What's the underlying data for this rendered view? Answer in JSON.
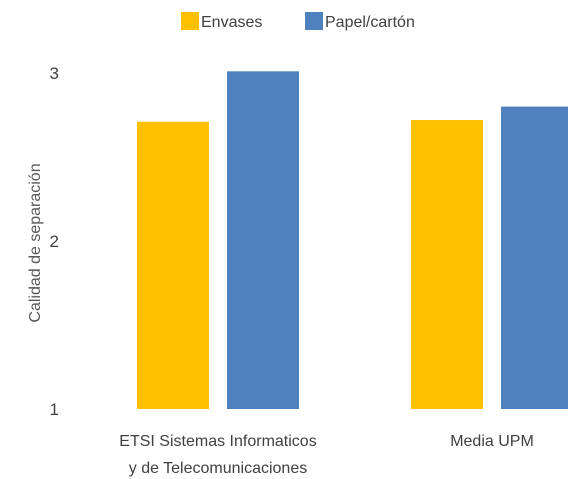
{
  "chart_data": {
    "type": "bar",
    "ylabel": "Calidad de separación",
    "ylim": [
      1,
      3
    ],
    "yticks": [
      "1",
      "2",
      "3"
    ],
    "categories": [
      [
        "ETSI Sistemas Informaticos",
        "y de Telecomunicaciones"
      ],
      [
        "Media UPM"
      ]
    ],
    "series": [
      {
        "name": "Envases",
        "color": "#FFC000",
        "values": [
          2.71,
          2.72
        ]
      },
      {
        "name": "Papel/cartón",
        "color": "#4F81BD",
        "values": [
          3.01,
          2.8
        ]
      }
    ],
    "legend_position": "top",
    "grid": false
  }
}
